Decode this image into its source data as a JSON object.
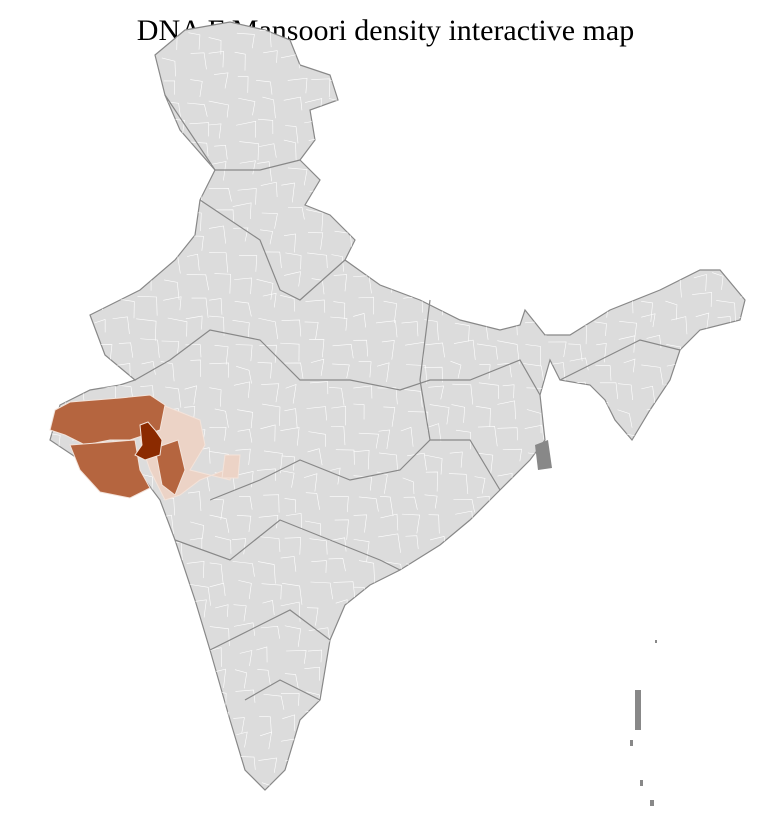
{
  "title": "DNA F Mansoori density interactive map",
  "colors": {
    "background": "#ffffff",
    "no_data": "#dcdcdc",
    "district_border": "#ffffff",
    "state_border": "#888888",
    "low_density": "#ecd3c6",
    "medium_density": "#b5653f",
    "high_density": "#8b2a00"
  }
}
